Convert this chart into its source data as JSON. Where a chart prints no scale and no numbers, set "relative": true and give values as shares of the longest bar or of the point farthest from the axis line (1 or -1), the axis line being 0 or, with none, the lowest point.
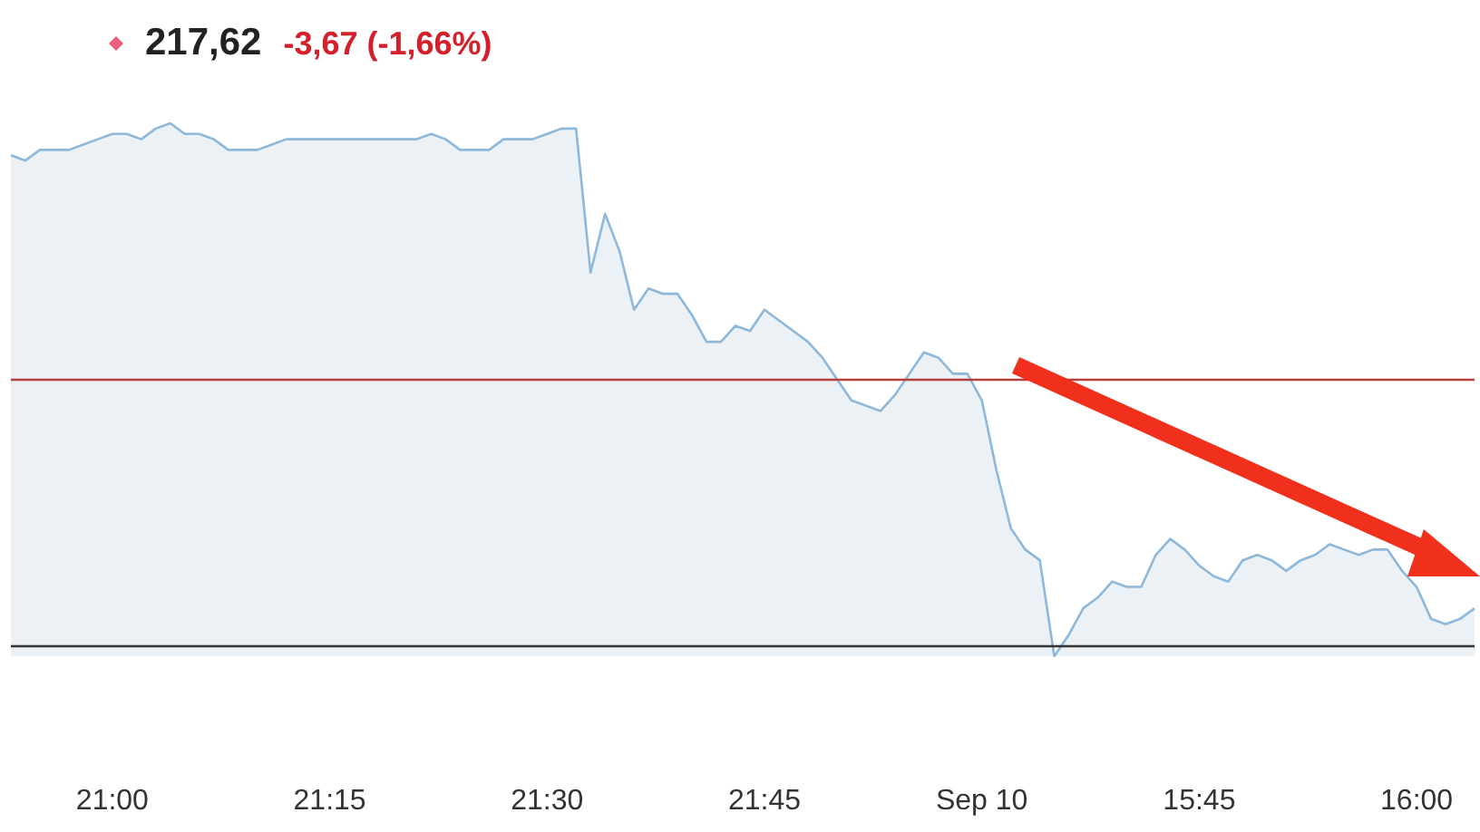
{
  "chart_data": {
    "type": "area",
    "title": "217,62",
    "subtitle": "-3,67 (-1,66%)",
    "relative": true,
    "grid": false,
    "marker": "none",
    "line_style": "solid",
    "categories": [
      null,
      null,
      null,
      null,
      null,
      null,
      null,
      "21:00",
      null,
      null,
      null,
      null,
      null,
      null,
      null,
      null,
      null,
      null,
      null,
      null,
      null,
      null,
      "21:15",
      null,
      null,
      null,
      null,
      null,
      null,
      null,
      null,
      null,
      null,
      null,
      null,
      null,
      null,
      "21:30",
      null,
      null,
      null,
      null,
      null,
      null,
      null,
      null,
      null,
      null,
      null,
      null,
      null,
      null,
      "21:45",
      null,
      null,
      null,
      null,
      null,
      null,
      null,
      null,
      null,
      null,
      null,
      null,
      null,
      null,
      "Sep 10",
      null,
      null,
      null,
      null,
      null,
      null,
      null,
      null,
      null,
      null,
      null,
      null,
      null,
      null,
      "15:45",
      null,
      null,
      null,
      null,
      null,
      null,
      null,
      null,
      null,
      null,
      null,
      null,
      null,
      null,
      "16:00",
      null,
      null,
      null,
      null
    ],
    "series": [
      {
        "color": "#8db8da",
        "values": [
          0.94,
          0.93,
          0.95,
          0.95,
          0.95,
          0.96,
          0.97,
          0.98,
          0.98,
          0.97,
          0.99,
          1,
          0.98,
          0.98,
          0.97,
          0.95,
          0.95,
          0.95,
          0.96,
          0.97,
          0.97,
          0.97,
          0.97,
          0.97,
          0.97,
          0.97,
          0.97,
          0.97,
          0.97,
          0.98,
          0.97,
          0.95,
          0.95,
          0.95,
          0.97,
          0.97,
          0.97,
          0.98,
          0.99,
          0.99,
          0.72,
          0.83,
          0.76,
          0.65,
          0.69,
          0.68,
          0.68,
          0.64,
          0.59,
          0.59,
          0.62,
          0.61,
          0.65,
          0.63,
          0.61,
          0.59,
          0.56,
          0.52,
          0.48,
          0.47,
          0.46,
          0.49,
          0.53,
          0.57,
          0.56,
          0.53,
          0.53,
          0.48,
          0.35,
          0.24,
          0.2,
          0.18,
          0,
          0.04,
          0.09,
          0.11,
          0.14,
          0.13,
          0.13,
          0.19,
          0.22,
          0.2,
          0.17,
          0.15,
          0.14,
          0.18,
          0.19,
          0.18,
          0.16,
          0.18,
          0.19,
          0.21,
          0.2,
          0.19,
          0.2,
          0.2,
          0.16,
          0.13,
          0.07,
          0.06,
          0.07,
          0.09
        ]
      }
    ],
    "ref_lines": [
      {
        "axis": "y",
        "value": 0.52,
        "color": "#b5403f",
        "line_style": "solid"
      },
      {
        "axis": "y",
        "value": 0.02,
        "color": "#333333",
        "line_style": "solid"
      }
    ]
  }
}
